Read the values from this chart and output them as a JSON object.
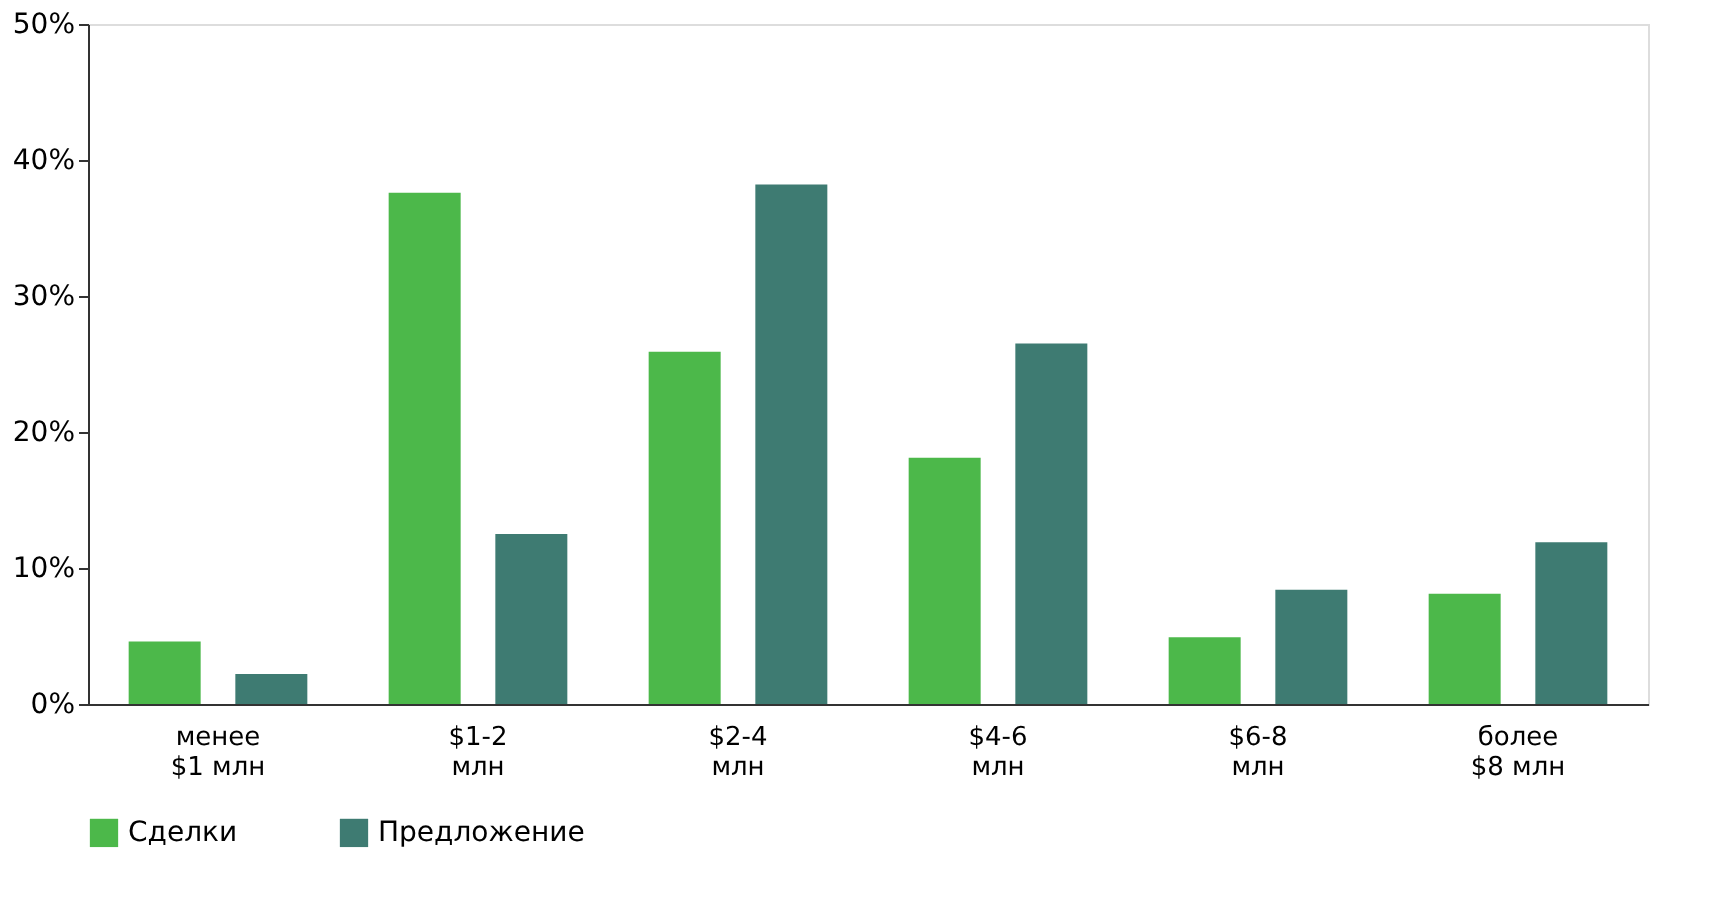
{
  "chart_data": {
    "type": "bar",
    "categories": [
      "менее\n$1  млн",
      "$1-2\nмлн",
      "$2-4\nмлн",
      "$4-6\nмлн",
      "$6-8\nмлн",
      "более\n$8  млн"
    ],
    "series": [
      {
        "name": "Сделки",
        "color": "#4cb84a",
        "values": [
          4.6,
          37.6,
          25.9,
          18.1,
          4.9,
          8.1
        ]
      },
      {
        "name": "Предложение",
        "color": "#3e7b72",
        "values": [
          2.2,
          12.5,
          38.2,
          26.5,
          8.4,
          11.9
        ]
      }
    ],
    "ylim": [
      0,
      50
    ],
    "yticks": [
      {
        "value": 0,
        "label": "0%"
      },
      {
        "value": 10,
        "label": "10%"
      },
      {
        "value": 20,
        "label": "20%"
      },
      {
        "value": 30,
        "label": "30%"
      },
      {
        "value": 40,
        "label": "40%"
      },
      {
        "value": 50,
        "label": "50%"
      }
    ],
    "grid": false,
    "legend": "bottom"
  }
}
